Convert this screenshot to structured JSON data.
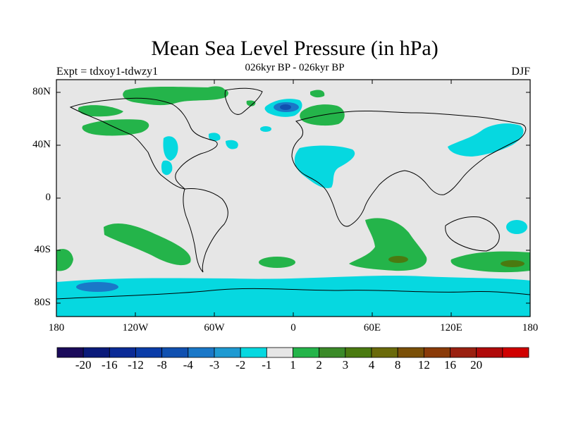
{
  "title": "Mean Sea Level Pressure (in hPa)",
  "subtitle": "026kyr BP - 026kyr BP",
  "expt_label": "Expt = tdxoy1-tdwzy1",
  "season": "DJF",
  "lat_labels": [
    "80N",
    "40N",
    "0",
    "40S",
    "80S"
  ],
  "lon_labels": [
    "180",
    "120W",
    "60W",
    "0",
    "60E",
    "120E",
    "180"
  ],
  "colorbar": {
    "colors": [
      "#1a0a5a",
      "#0a1a7a",
      "#0a2a96",
      "#0a3ca8",
      "#1050b0",
      "#1a78c8",
      "#1e9ad2",
      "#06d8e0",
      "#e6e6e6",
      "#24b44a",
      "#3a8a28",
      "#4a7a10",
      "#6a6a0a",
      "#7a5008",
      "#8a3a08",
      "#9a2010",
      "#b00a0a",
      "#d00000"
    ],
    "labels": [
      "-20",
      "-16",
      "-12",
      "-8",
      "-4",
      "-3",
      "-2",
      "-1",
      "1",
      "2",
      "3",
      "4",
      "8",
      "12",
      "16",
      "20"
    ]
  },
  "colors": {
    "land_bg": "#e6e6e6",
    "neg1": "#06d8e0",
    "neg3": "#1a78c8",
    "neg4": "#1050b0",
    "pos1": "#24b44a",
    "pos3": "#4a7a10"
  }
}
